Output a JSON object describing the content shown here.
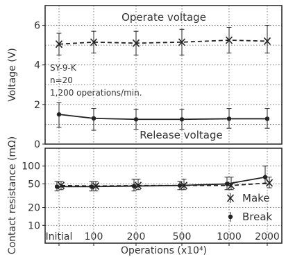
{
  "chart_data": {
    "type": "line",
    "categories": [
      "Initial",
      "100",
      "200",
      "500",
      "1000",
      "2000"
    ],
    "xlabel": "Operations (x10⁴)",
    "panels": [
      {
        "name": "voltage",
        "ylabel": "Voltage (V)",
        "ylim": [
          0,
          7
        ],
        "yticks": [
          "0",
          "2",
          "4",
          "6"
        ],
        "series": [
          {
            "name": "Operate voltage",
            "marker": "x",
            "line": "dashed",
            "values": [
              5.05,
              5.15,
              5.1,
              5.15,
              5.25,
              5.2
            ],
            "err_low": [
              4.5,
              4.6,
              4.5,
              4.5,
              4.6,
              4.6
            ],
            "err_high": [
              5.6,
              5.7,
              5.7,
              5.8,
              5.9,
              6.0
            ]
          },
          {
            "name": "Release voltage",
            "marker": "dot",
            "line": "solid",
            "values": [
              1.5,
              1.3,
              1.25,
              1.25,
              1.28,
              1.28
            ],
            "err_low": [
              0.85,
              0.7,
              0.75,
              0.75,
              0.8,
              0.8
            ],
            "err_high": [
              2.1,
              1.8,
              1.75,
              1.75,
              1.8,
              1.8
            ]
          }
        ],
        "annotations": [
          "SY-9-K",
          "n=20",
          "1,200 operations/min."
        ]
      },
      {
        "name": "contact-resistance",
        "ylabel": "Contact resistance (mΩ)",
        "scale": "log",
        "ylim": [
          5,
          200
        ],
        "yticks": [
          "10",
          "20",
          "50",
          "100"
        ],
        "series": [
          {
            "name": "Make",
            "marker": "x",
            "line": "dashed",
            "values": [
              47,
              46,
              47,
              47,
              47,
              52
            ],
            "err_low": [
              40,
              38,
              40,
              40,
              40,
              43
            ],
            "err_high": [
              55,
              55,
              60,
              60,
              65,
              65
            ]
          },
          {
            "name": "Break",
            "marker": "dot",
            "line": "solid",
            "values": [
              45,
              45,
              46,
              47,
              50,
              65
            ],
            "err_low": [
              38,
              38,
              38,
              40,
              40,
              50
            ],
            "err_high": [
              55,
              55,
              60,
              55,
              65,
              100
            ]
          }
        ]
      }
    ],
    "legend": [
      "Make",
      "Break"
    ],
    "grid": true
  }
}
